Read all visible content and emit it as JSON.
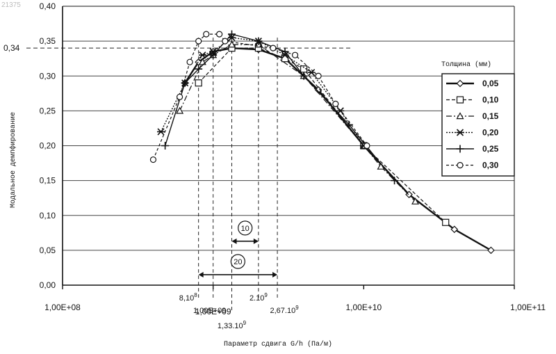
{
  "corner_mark": "21375",
  "chart_data": {
    "type": "line",
    "xscale": "log",
    "xlim": [
      100000000.0,
      100000000000.0
    ],
    "ylim": [
      0,
      0.4
    ],
    "ylabel": "Модальное демпфирование",
    "xlabel": "Параметр сдвига G/h (Па/м)",
    "x_tick_labels": [
      "1,00E+08",
      "1,00E+09",
      "1,00E+10",
      "1,00E+11"
    ],
    "x_tick_values": [
      100000000.0,
      1000000000.0,
      10000000000.0,
      100000000000.0
    ],
    "y_tick_labels": [
      "0,00",
      "0,05",
      "0,10",
      "0,15",
      "0,20",
      "0,25",
      "0,30",
      "0,35",
      "0,40"
    ],
    "y_tick_values": [
      0,
      0.05,
      0.1,
      0.15,
      0.2,
      0.25,
      0.3,
      0.35,
      0.4
    ],
    "grid": "horizontal",
    "legend": {
      "title": "Толщина (мм)",
      "position": "right"
    },
    "series": [
      {
        "name": "0,05",
        "marker": "diamond",
        "dash": "",
        "width": 2.4,
        "x": [
          650000000.0,
          800000000.0,
          1000000000.0,
          1330000000.0,
          2000000000.0,
          3000000000.0,
          5000000000.0,
          10000000000.0,
          20000000000.0,
          40000000000.0,
          70000000000.0
        ],
        "y": [
          0.29,
          0.32,
          0.335,
          0.34,
          0.338,
          0.325,
          0.28,
          0.2,
          0.13,
          0.08,
          0.05
        ]
      },
      {
        "name": "0,10",
        "marker": "square",
        "dash": "5,3",
        "width": 1.2,
        "x": [
          800000000.0,
          1330000000.0,
          2000000000.0,
          3000000000.0,
          4000000000.0,
          10000000000.0,
          35000000000.0
        ],
        "y": [
          0.29,
          0.34,
          0.34,
          0.325,
          0.31,
          0.2,
          0.09
        ]
      },
      {
        "name": "0,15",
        "marker": "triangle",
        "dash": "8,3,2,3",
        "width": 1.2,
        "x": [
          600000000.0,
          850000000.0,
          1000000000.0,
          1330000000.0,
          2000000000.0,
          4000000000.0,
          10000000000.0,
          13000000000.0,
          22000000000.0
        ],
        "y": [
          0.25,
          0.32,
          0.33,
          0.345,
          0.345,
          0.3,
          0.2,
          0.17,
          0.12
        ]
      },
      {
        "name": "0,20",
        "marker": "star",
        "dash": "2,2",
        "width": 1.4,
        "x": [
          450000000.0,
          650000000.0,
          850000000.0,
          1000000000.0,
          1330000000.0,
          2000000000.0,
          3000000000.0,
          4500000000.0,
          7000000000.0,
          10000000000.0
        ],
        "y": [
          0.22,
          0.29,
          0.33,
          0.335,
          0.355,
          0.35,
          0.33,
          0.305,
          0.25,
          0.2
        ]
      },
      {
        "name": "0,25",
        "marker": "plus",
        "dash": "",
        "width": 1.4,
        "x": [
          480000000.0,
          650000000.0,
          800000000.0,
          1000000000.0,
          1330000000.0,
          2000000000.0,
          3000000000.0,
          4000000000.0,
          8000000000.0,
          16000000000.0
        ],
        "y": [
          0.2,
          0.29,
          0.31,
          0.33,
          0.36,
          0.35,
          0.335,
          0.3,
          0.23,
          0.15
        ]
      },
      {
        "name": "0,30",
        "marker": "circle",
        "dash": "4,3",
        "width": 1.2,
        "x": [
          400000000.0,
          600000000.0,
          700000000.0,
          800000000.0,
          900000000.0,
          1100000000.0,
          1200000000.0,
          2500000000.0,
          3500000000.0,
          5000000000.0,
          6500000000.0,
          10500000000.0
        ],
        "y": [
          0.18,
          0.27,
          0.32,
          0.35,
          0.36,
          0.36,
          0.35,
          0.34,
          0.33,
          0.3,
          0.26,
          0.2
        ]
      }
    ],
    "annotations": {
      "reference_y": {
        "value": 0.34,
        "label": "0,34"
      },
      "vertical_markers": [
        {
          "x": 800000000.0,
          "label_base": "8,10",
          "label_exp": "8"
        },
        {
          "x": 1000000000.0,
          "label_base": "1,00E+09",
          "label_exp": ""
        },
        {
          "x": 1330000000.0,
          "label_base": "1,33.10",
          "label_exp": "9"
        },
        {
          "x": 2000000000.0,
          "label_base": "2.10",
          "label_exp": "9"
        },
        {
          "x": 2670000000.0,
          "label_base": "2,67.10",
          "label_exp": "9"
        }
      ],
      "ranges": [
        {
          "label": "10",
          "x1": 1330000000.0,
          "x2": 2000000000.0,
          "y": 0.063
        },
        {
          "label": "20",
          "x1": 800000000.0,
          "x2": 2670000000.0,
          "y": 0.015
        }
      ]
    }
  }
}
